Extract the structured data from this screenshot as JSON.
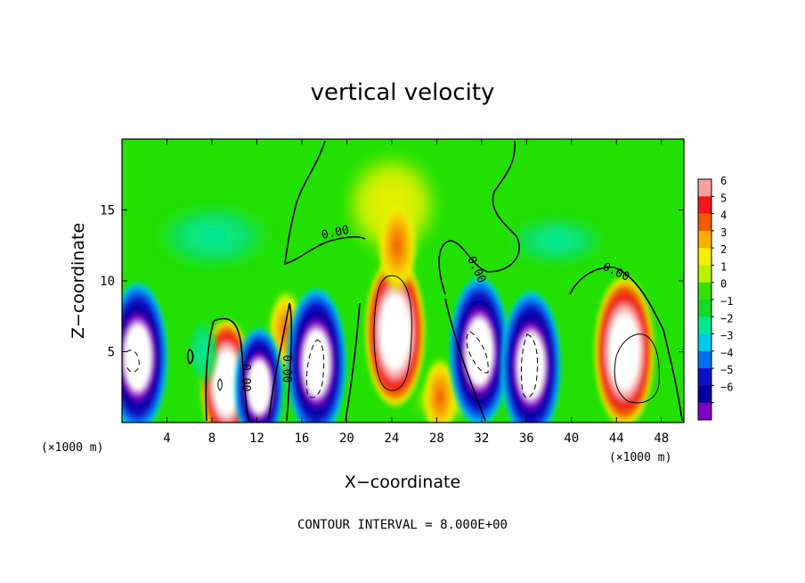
{
  "chart_data": {
    "type": "heatmap",
    "title": "vertical velocity",
    "xlabel": "X−coordinate",
    "ylabel": "Z−coordinate",
    "x_unit": "(×1000 m)",
    "xlim": [
      0,
      50
    ],
    "ylim": [
      0,
      20
    ],
    "x_ticks": [
      4,
      8,
      12,
      16,
      20,
      24,
      28,
      32,
      36,
      40,
      44,
      48
    ],
    "y_ticks": [
      5,
      10,
      15
    ],
    "colorbar": {
      "ticks": [
        "6",
        "5",
        "4",
        "3",
        "2",
        "1",
        "0",
        "−1",
        "−2",
        "−3",
        "−4",
        "−5",
        "−6"
      ],
      "colors": [
        "#f8a0a0",
        "#f01818",
        "#f05a00",
        "#f8b000",
        "#f0f000",
        "#b8f000",
        "#38e000",
        "#18d828",
        "#00e890",
        "#00c8e8",
        "#0070f0",
        "#1010c8",
        "#0000a0",
        "#8000c0"
      ]
    },
    "background_color": "#22e000",
    "contour_label": "0.00",
    "contour_interval_text": "CONTOUR INTERVAL = 8.000E+00",
    "features": [
      {
        "kind": "updraft",
        "x": 24.3,
        "z": 6.4,
        "value": 6.5
      },
      {
        "kind": "updraft",
        "x": 44.7,
        "z": 5.0,
        "value": 6.5
      },
      {
        "kind": "updraft",
        "x": 9.3,
        "z": 2.8,
        "value": 5.0
      },
      {
        "kind": "updraft",
        "x": 14.6,
        "z": 6.5,
        "value": 2.0
      },
      {
        "kind": "updraft",
        "x": 24.5,
        "z": 12.5,
        "value": 3.0
      },
      {
        "kind": "updraft",
        "x": 28.3,
        "z": 1.8,
        "value": 2.0
      },
      {
        "kind": "downdraft",
        "x": 1.4,
        "z": 4.6,
        "value": -6.5
      },
      {
        "kind": "downdraft",
        "x": 17.3,
        "z": 4.2,
        "value": -6.5
      },
      {
        "kind": "downdraft",
        "x": 31.8,
        "z": 5.0,
        "value": -6.5
      },
      {
        "kind": "downdraft",
        "x": 36.4,
        "z": 4.0,
        "value": -6.5
      },
      {
        "kind": "downdraft",
        "x": 12.2,
        "z": 2.5,
        "value": -4.5
      },
      {
        "kind": "downdraft",
        "x": 7.2,
        "z": 5.0,
        "value": -1.5
      }
    ]
  }
}
